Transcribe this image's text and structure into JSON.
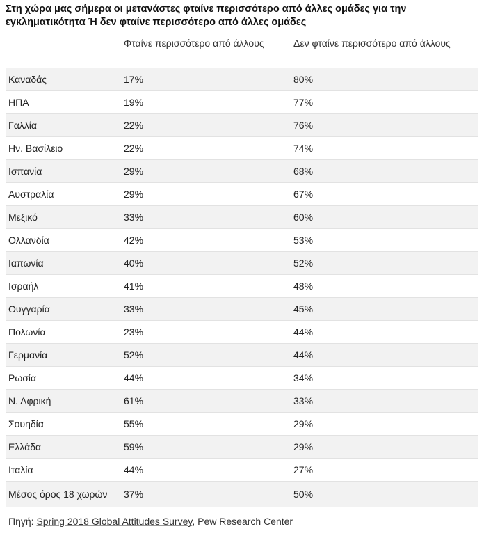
{
  "title": "Στη χώρα μας σήμερα οι μετανάστες φταίνε περισσότερο από άλλες ομάδες για την εγκληματικότητα Ή δεν φταίνε περισσότερο από άλλες ομάδες",
  "chart_data": {
    "type": "table",
    "columns": [
      "",
      "Φταίνε περισσότερο από άλλους",
      "Δεν φταίνε περισσότερο από άλλους"
    ],
    "rows": [
      {
        "country": "Καναδάς",
        "more": "17%",
        "not_more": "80%"
      },
      {
        "country": "ΗΠΑ",
        "more": "19%",
        "not_more": "77%"
      },
      {
        "country": "Γαλλία",
        "more": "22%",
        "not_more": "76%"
      },
      {
        "country": "Ην. Βασίλειο",
        "more": "22%",
        "not_more": "74%"
      },
      {
        "country": "Ισπανία",
        "more": "29%",
        "not_more": "68%"
      },
      {
        "country": "Αυστραλία",
        "more": "29%",
        "not_more": "67%"
      },
      {
        "country": "Μεξικό",
        "more": "33%",
        "not_more": "60%"
      },
      {
        "country": "Ολλανδία",
        "more": "42%",
        "not_more": "53%"
      },
      {
        "country": "Ιαπωνία",
        "more": "40%",
        "not_more": "52%"
      },
      {
        "country": "Ισραήλ",
        "more": "41%",
        "not_more": "48%"
      },
      {
        "country": "Ουγγαρία",
        "more": "33%",
        "not_more": "45%"
      },
      {
        "country": "Πολωνία",
        "more": "23%",
        "not_more": "44%"
      },
      {
        "country": "Γερμανία",
        "more": "52%",
        "not_more": "44%"
      },
      {
        "country": "Ρωσία",
        "more": "44%",
        "not_more": "34%"
      },
      {
        "country": "Ν. Αφρική",
        "more": "61%",
        "not_more": "33%"
      },
      {
        "country": "Σουηδία",
        "more": "55%",
        "not_more": "29%"
      },
      {
        "country": "Ελλάδα",
        "more": "59%",
        "not_more": "29%"
      },
      {
        "country": "Ιταλία",
        "more": "44%",
        "not_more": "27%"
      },
      {
        "country": "Μέσος όρος 18 χωρών",
        "more": "37%",
        "not_more": "50%"
      }
    ]
  },
  "source": {
    "prefix": "Πηγή: ",
    "link_text": "Spring 2018 Global Attitudes Survey",
    "suffix": ", Pew Research Center"
  }
}
